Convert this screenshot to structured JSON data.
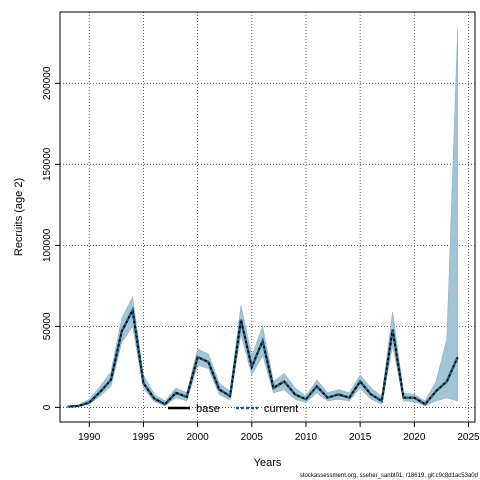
{
  "chart_data": {
    "type": "line",
    "title": "",
    "xlabel": "Years",
    "ylabel": "Recruits (age 2)",
    "xlim": [
      1987.3,
      2025.6
    ],
    "ylim": [
      -9000,
      244000
    ],
    "xticks": [
      1990,
      1995,
      2000,
      2005,
      2010,
      2015,
      2020,
      2025
    ],
    "yticks": [
      0,
      50000,
      100000,
      150000,
      200000
    ],
    "grid": true,
    "legend_position": "bottom-center",
    "x": [
      1988,
      1989,
      1990,
      1991,
      1992,
      1993,
      1994,
      1995,
      1996,
      1997,
      1998,
      1999,
      2000,
      2001,
      2002,
      2003,
      2004,
      2005,
      2006,
      2007,
      2008,
      2009,
      2010,
      2011,
      2012,
      2013,
      2014,
      2015,
      2016,
      2017,
      2018,
      2019,
      2020,
      2021,
      2022,
      2023,
      2024
    ],
    "band": {
      "lower": [
        300,
        500,
        2000,
        7000,
        13000,
        40000,
        50000,
        12000,
        3500,
        1000,
        6000,
        4000,
        26000,
        24000,
        8000,
        4500,
        45000,
        20000,
        32000,
        9000,
        11000,
        5000,
        3000,
        9000,
        4000,
        5000,
        4000,
        12000,
        5000,
        2000,
        38000,
        4000,
        3500,
        1000,
        4000,
        6000,
        4000
      ],
      "upper": [
        800,
        1500,
        5000,
        13000,
        22000,
        55000,
        68000,
        20000,
        8000,
        4000,
        12000,
        9000,
        36000,
        33000,
        15000,
        10000,
        63000,
        32000,
        50000,
        16000,
        21000,
        12000,
        7000,
        17000,
        9000,
        11000,
        9000,
        20000,
        12000,
        7000,
        59000,
        9000,
        8000,
        4000,
        16000,
        42000,
        234000
      ]
    },
    "series": [
      {
        "name": "base",
        "values": [
          500,
          900,
          3000,
          9500,
          17000,
          47000,
          60000,
          15000,
          5500,
          2000,
          9000,
          6500,
          31000,
          28000,
          11000,
          7000,
          54000,
          25000,
          41000,
          12000,
          16000,
          8000,
          5000,
          13000,
          6000,
          8000,
          6000,
          16000,
          8000,
          4000,
          48000,
          6000,
          6000,
          2000,
          10000,
          16000,
          31000
        ]
      },
      {
        "name": "current",
        "values": [
          500,
          900,
          3000,
          9500,
          17000,
          47000,
          60000,
          15000,
          5500,
          2000,
          9000,
          6500,
          31000,
          28000,
          11000,
          7000,
          54000,
          25000,
          41000,
          12000,
          16000,
          8000,
          5000,
          13000,
          6000,
          8000,
          6000,
          16000,
          8000,
          4000,
          48000,
          6000,
          6000,
          2000,
          10000,
          16000,
          31000
        ]
      }
    ],
    "colors": {
      "band": "#a3c4d2",
      "band_edge": "#8fb2c2",
      "base": "#000000",
      "current": "#1f5f7f",
      "grid": "#444444"
    },
    "footnote": "stockassessment.org, sseher_sanbt01, r18619, git:c9c8d1ac53a0d"
  }
}
